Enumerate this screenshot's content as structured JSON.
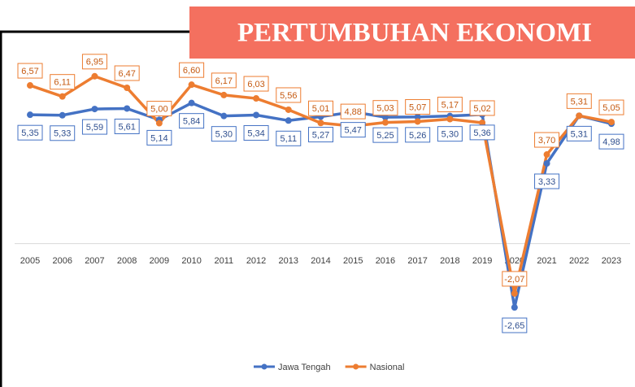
{
  "chart_data": {
    "type": "line",
    "title": "PERTUMBUHAN EKONOMI",
    "categories": [
      "2005",
      "2006",
      "2007",
      "2008",
      "2009",
      "2010",
      "2011",
      "2012",
      "2013",
      "2014",
      "2015",
      "2016",
      "2017",
      "2018",
      "2019",
      "2020",
      "2021",
      "2022",
      "2023"
    ],
    "series": [
      {
        "name": "Jawa Tengah",
        "color": "#4472c4",
        "values": [
          5.35,
          5.33,
          5.59,
          5.61,
          5.14,
          5.84,
          5.3,
          5.34,
          5.11,
          5.27,
          5.47,
          5.25,
          5.26,
          5.3,
          5.36,
          -2.65,
          3.33,
          5.31,
          4.98
        ],
        "value_labels": [
          "5,35",
          "5,33",
          "5,59",
          "5,61",
          "5,14",
          "5,84",
          "5,30",
          "5,34",
          "5,11",
          "5,27",
          "5,47",
          "5,25",
          "5,26",
          "5,30",
          "5,36",
          "-2,65",
          "3,33",
          "5,31",
          "4,98"
        ]
      },
      {
        "name": "Nasional",
        "color": "#ed7d31",
        "values": [
          6.57,
          6.11,
          6.95,
          6.47,
          5.0,
          6.6,
          6.17,
          6.03,
          5.56,
          5.01,
          4.88,
          5.03,
          5.07,
          5.17,
          5.02,
          -2.07,
          3.7,
          5.31,
          5.05
        ],
        "value_labels": [
          "6,57",
          "6,11",
          "6,95",
          "6,47",
          "5,00",
          "6,60",
          "6,17",
          "6,03",
          "5,56",
          "5,01",
          "4,88",
          "5,03",
          "5,07",
          "5,17",
          "5,02",
          "-2,07",
          "3,70",
          "5,31",
          "5,05"
        ]
      }
    ],
    "ylim": [
      -4,
      8
    ],
    "legend": "bottom"
  }
}
